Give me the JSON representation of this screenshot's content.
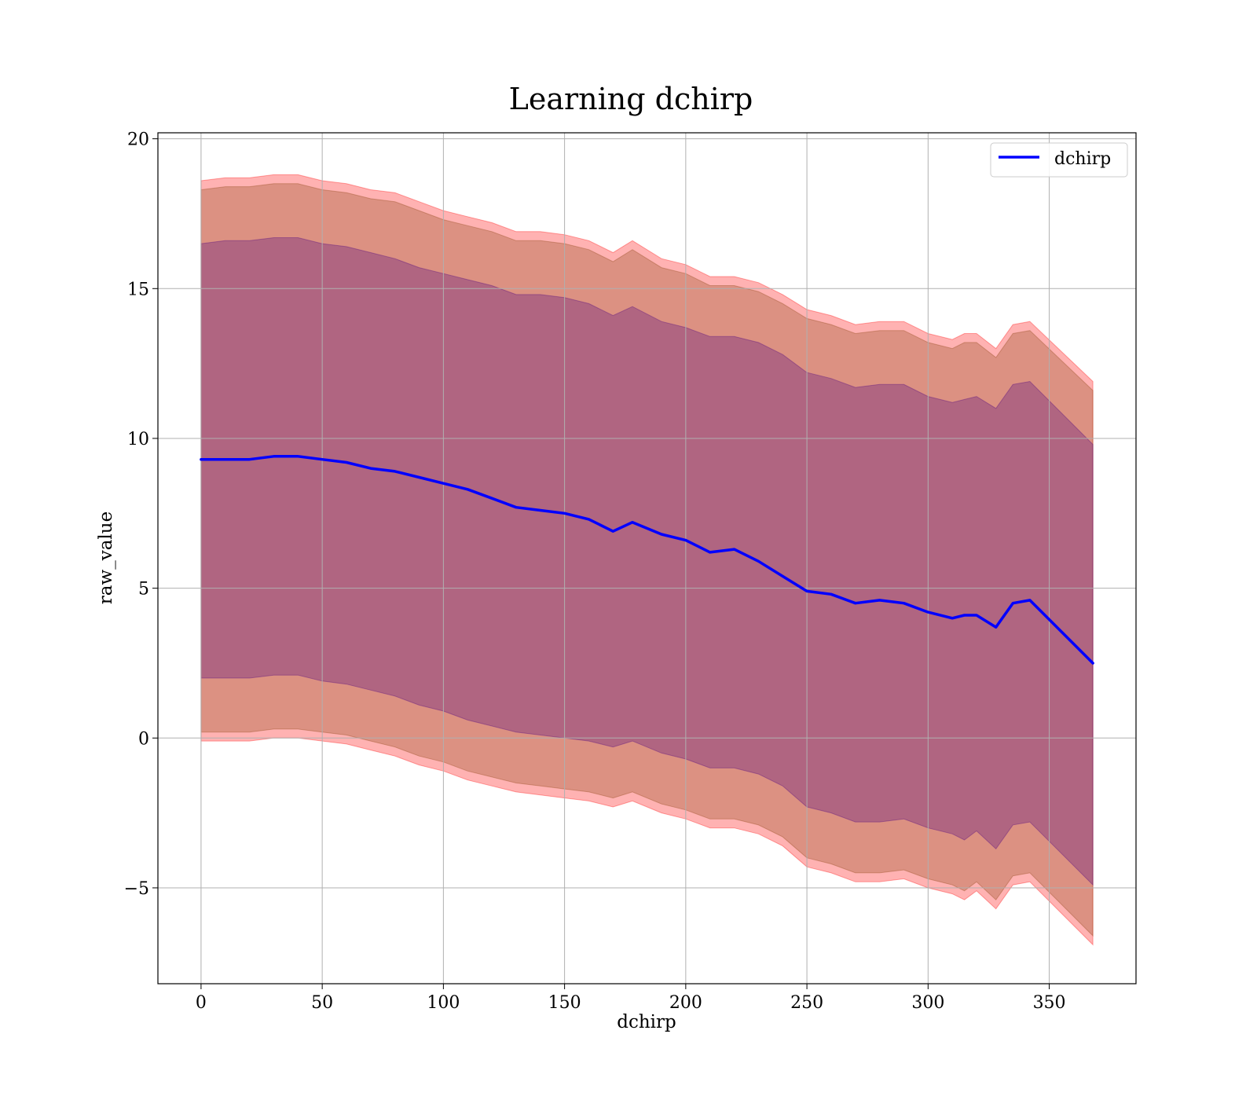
{
  "chart_data": {
    "type": "line",
    "title": "Learning dchirp",
    "xlabel": "dchirp",
    "ylabel": "raw_value",
    "xlim": [
      -17.8,
      385.8
    ],
    "ylim": [
      -8.2,
      20.2
    ],
    "grid": true,
    "legend_position": "top-right",
    "x_ticks": [
      0,
      50,
      100,
      150,
      200,
      250,
      300,
      350
    ],
    "x_tick_labels": [
      "0",
      "50",
      "100",
      "150",
      "200",
      "250",
      "300",
      "350"
    ],
    "y_ticks": [
      -5,
      0,
      5,
      10,
      15,
      20
    ],
    "y_tick_labels": [
      "−5",
      "0",
      "5",
      "10",
      "15",
      "20"
    ],
    "colors": {
      "mean_line": "#0000ff",
      "outer_band": "#ff0000",
      "middle_band": "#8b4513",
      "inner_band": "#4b0082"
    },
    "series": [
      {
        "name": "dchirp",
        "x": [
          0,
          10,
          20,
          30,
          40,
          50,
          60,
          70,
          80,
          90,
          100,
          110,
          120,
          130,
          140,
          150,
          160,
          170,
          178,
          190,
          200,
          210,
          220,
          230,
          240,
          250,
          260,
          270,
          280,
          290,
          300,
          310,
          315,
          320,
          328,
          335,
          342,
          368
        ],
        "y": [
          9.3,
          9.3,
          9.3,
          9.4,
          9.4,
          9.3,
          9.2,
          9.0,
          8.9,
          8.7,
          8.5,
          8.3,
          8.0,
          7.7,
          7.6,
          7.5,
          7.3,
          6.9,
          7.2,
          6.8,
          6.6,
          6.2,
          6.3,
          5.9,
          5.4,
          4.9,
          4.8,
          4.5,
          4.6,
          4.5,
          4.2,
          4.0,
          4.1,
          4.1,
          3.7,
          4.5,
          4.6,
          2.5
        ]
      }
    ],
    "bands": [
      {
        "kind": "outer",
        "x": [
          0,
          10,
          20,
          30,
          40,
          50,
          60,
          70,
          80,
          90,
          100,
          110,
          120,
          130,
          140,
          150,
          160,
          170,
          178,
          190,
          200,
          210,
          220,
          230,
          240,
          250,
          260,
          270,
          280,
          290,
          300,
          310,
          315,
          320,
          328,
          335,
          342,
          368
        ],
        "upper": [
          18.6,
          18.7,
          18.7,
          18.8,
          18.8,
          18.6,
          18.5,
          18.3,
          18.2,
          17.9,
          17.6,
          17.4,
          17.2,
          16.9,
          16.9,
          16.8,
          16.6,
          16.2,
          16.6,
          16.0,
          15.8,
          15.4,
          15.4,
          15.2,
          14.8,
          14.3,
          14.1,
          13.8,
          13.9,
          13.9,
          13.5,
          13.3,
          13.5,
          13.5,
          13.0,
          13.8,
          13.9,
          11.9
        ],
        "lower": [
          -0.1,
          -0.1,
          -0.1,
          0.0,
          0.0,
          -0.1,
          -0.2,
          -0.4,
          -0.6,
          -0.9,
          -1.1,
          -1.4,
          -1.6,
          -1.8,
          -1.9,
          -2.0,
          -2.1,
          -2.3,
          -2.1,
          -2.5,
          -2.7,
          -3.0,
          -3.0,
          -3.2,
          -3.6,
          -4.3,
          -4.5,
          -4.8,
          -4.8,
          -4.7,
          -5.0,
          -5.2,
          -5.4,
          -5.1,
          -5.7,
          -4.9,
          -4.8,
          -6.9
        ]
      },
      {
        "kind": "middle",
        "x": [
          0,
          10,
          20,
          30,
          40,
          50,
          60,
          70,
          80,
          90,
          100,
          110,
          120,
          130,
          140,
          150,
          160,
          170,
          178,
          190,
          200,
          210,
          220,
          230,
          240,
          250,
          260,
          270,
          280,
          290,
          300,
          310,
          315,
          320,
          328,
          335,
          342,
          368
        ],
        "upper": [
          18.3,
          18.4,
          18.4,
          18.5,
          18.5,
          18.3,
          18.2,
          18.0,
          17.9,
          17.6,
          17.3,
          17.1,
          16.9,
          16.6,
          16.6,
          16.5,
          16.3,
          15.9,
          16.3,
          15.7,
          15.5,
          15.1,
          15.1,
          14.9,
          14.5,
          14.0,
          13.8,
          13.5,
          13.6,
          13.6,
          13.2,
          13.0,
          13.2,
          13.2,
          12.7,
          13.5,
          13.6,
          11.6
        ],
        "lower": [
          0.2,
          0.2,
          0.2,
          0.3,
          0.3,
          0.2,
          0.1,
          -0.1,
          -0.3,
          -0.6,
          -0.8,
          -1.1,
          -1.3,
          -1.5,
          -1.6,
          -1.7,
          -1.8,
          -2.0,
          -1.8,
          -2.2,
          -2.4,
          -2.7,
          -2.7,
          -2.9,
          -3.3,
          -4.0,
          -4.2,
          -4.5,
          -4.5,
          -4.4,
          -4.7,
          -4.9,
          -5.1,
          -4.8,
          -5.4,
          -4.6,
          -4.5,
          -6.6
        ]
      },
      {
        "kind": "inner",
        "x": [
          0,
          10,
          20,
          30,
          40,
          50,
          60,
          70,
          80,
          90,
          100,
          110,
          120,
          130,
          140,
          150,
          160,
          170,
          178,
          190,
          200,
          210,
          220,
          230,
          240,
          250,
          260,
          270,
          280,
          290,
          300,
          310,
          315,
          320,
          328,
          335,
          342,
          368
        ],
        "upper": [
          16.5,
          16.6,
          16.6,
          16.7,
          16.7,
          16.5,
          16.4,
          16.2,
          16.0,
          15.7,
          15.5,
          15.3,
          15.1,
          14.8,
          14.8,
          14.7,
          14.5,
          14.1,
          14.4,
          13.9,
          13.7,
          13.4,
          13.4,
          13.2,
          12.8,
          12.2,
          12.0,
          11.7,
          11.8,
          11.8,
          11.4,
          11.2,
          11.3,
          11.4,
          11.0,
          11.8,
          11.9,
          9.8
        ],
        "lower": [
          2.0,
          2.0,
          2.0,
          2.1,
          2.1,
          1.9,
          1.8,
          1.6,
          1.4,
          1.1,
          0.9,
          0.6,
          0.4,
          0.2,
          0.1,
          0.0,
          -0.1,
          -0.3,
          -0.1,
          -0.5,
          -0.7,
          -1.0,
          -1.0,
          -1.2,
          -1.6,
          -2.3,
          -2.5,
          -2.8,
          -2.8,
          -2.7,
          -3.0,
          -3.2,
          -3.4,
          -3.1,
          -3.7,
          -2.9,
          -2.8,
          -4.9
        ]
      }
    ],
    "legend": [
      {
        "label": "dchirp",
        "color": "#0000ff"
      }
    ]
  }
}
